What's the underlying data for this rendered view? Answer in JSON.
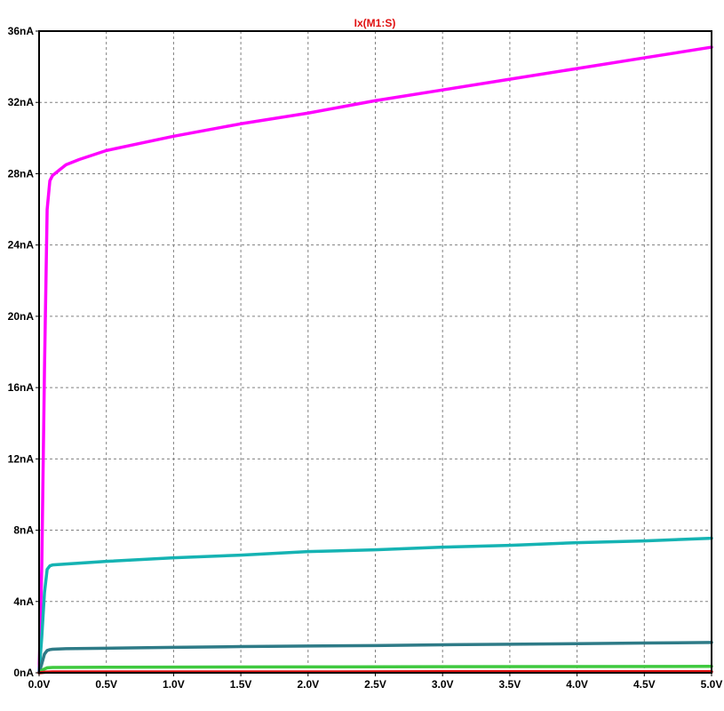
{
  "chart_data": {
    "type": "line",
    "title": "Ix(M1:S)",
    "title_color": "#e01010",
    "xlabel": "",
    "ylabel": "",
    "xlim": [
      0,
      5
    ],
    "ylim": [
      0,
      36
    ],
    "grid": true,
    "grid_style": "dashed",
    "x_ticks": [
      0,
      0.5,
      1,
      1.5,
      2,
      2.5,
      3,
      3.5,
      4,
      4.5,
      5
    ],
    "x_tick_labels": [
      "0.0V",
      "0.5V",
      "1.0V",
      "1.5V",
      "2.0V",
      "2.5V",
      "3.0V",
      "3.5V",
      "4.0V",
      "4.5V",
      "5.0V"
    ],
    "y_ticks": [
      0,
      4,
      8,
      12,
      16,
      20,
      24,
      28,
      32,
      36
    ],
    "y_tick_labels": [
      "0nA",
      "4nA",
      "8nA",
      "12nA",
      "16nA",
      "20nA",
      "24nA",
      "28nA",
      "32nA",
      "36nA"
    ],
    "series": [
      {
        "color": "#ff00ff",
        "x": [
          0,
          0.02,
          0.04,
          0.06,
          0.08,
          0.1,
          0.15,
          0.2,
          0.3,
          0.5,
          0.75,
          1.0,
          1.5,
          2.0,
          2.5,
          3.0,
          3.5,
          4.0,
          4.5,
          5.0
        ],
        "y": [
          0,
          6,
          17,
          26,
          27.6,
          27.9,
          28.2,
          28.5,
          28.8,
          29.3,
          29.7,
          30.1,
          30.8,
          31.4,
          32.1,
          32.7,
          33.3,
          33.9,
          34.5,
          35.1
        ]
      },
      {
        "color": "#15b3b3",
        "x": [
          0,
          0.02,
          0.04,
          0.06,
          0.08,
          0.1,
          0.2,
          0.5,
          1.0,
          1.5,
          2.0,
          2.5,
          3.0,
          3.5,
          4.0,
          4.5,
          5.0
        ],
        "y": [
          0,
          2.0,
          4.5,
          5.8,
          6.0,
          6.05,
          6.1,
          6.25,
          6.45,
          6.6,
          6.8,
          6.9,
          7.05,
          7.15,
          7.3,
          7.4,
          7.55
        ]
      },
      {
        "color": "#2e7b87",
        "x": [
          0,
          0.02,
          0.04,
          0.06,
          0.08,
          0.1,
          0.2,
          0.5,
          1.0,
          1.5,
          2.0,
          2.5,
          3.0,
          3.5,
          4.0,
          4.5,
          5.0
        ],
        "y": [
          0,
          0.5,
          1.05,
          1.25,
          1.3,
          1.32,
          1.35,
          1.38,
          1.43,
          1.47,
          1.5,
          1.53,
          1.57,
          1.6,
          1.63,
          1.67,
          1.7
        ]
      },
      {
        "color": "#3ec93e",
        "x": [
          0,
          0.03,
          0.06,
          0.1,
          0.5,
          1.0,
          2.0,
          3.0,
          4.0,
          5.0
        ],
        "y": [
          0,
          0.18,
          0.28,
          0.3,
          0.31,
          0.32,
          0.33,
          0.34,
          0.35,
          0.36
        ]
      },
      {
        "color": "#e01010",
        "x": [
          0,
          0.05,
          0.1,
          1.0,
          2.0,
          3.0,
          4.0,
          5.0
        ],
        "y": [
          0,
          0.04,
          0.05,
          0.05,
          0.05,
          0.06,
          0.06,
          0.06
        ]
      }
    ]
  }
}
